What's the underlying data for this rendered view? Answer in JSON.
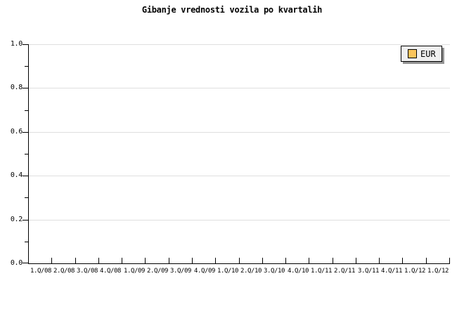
{
  "colors": {
    "background": "#ffffff",
    "text": "#000000",
    "axis": "#000000",
    "grid": "#dfdfdf",
    "legend_bg": "#f0f0f0",
    "legend_border": "#000000",
    "legend_shadow": "#949494"
  },
  "legend": {
    "position": "top-right"
  },
  "chart_data": {
    "type": "line",
    "title": "Gibanje vrednosti vozila po kvartalih",
    "xlabel": "",
    "ylabel": "",
    "categories": [
      "1.Q/08",
      "2.Q/08",
      "3.Q/08",
      "4.Q/08",
      "1.Q/09",
      "2.Q/09",
      "3.Q/09",
      "4.Q/09",
      "1.Q/10",
      "2.Q/10",
      "3.Q/10",
      "4.Q/10",
      "1.Q/11",
      "2.Q/11",
      "3.Q/11",
      "4.Q/11",
      "1.Q/12",
      "1.Q/12"
    ],
    "series": [
      {
        "name": "EUR",
        "color": "#FAC45C",
        "values": []
      }
    ],
    "ylim": [
      0.0,
      1.0
    ],
    "yticks": [
      "0.0",
      "0.2",
      "0.4",
      "0.6",
      "0.8",
      "1.0"
    ],
    "minor_ytick_step": 0.1,
    "grid": "horizontal-major",
    "legend_position": "top-right"
  }
}
